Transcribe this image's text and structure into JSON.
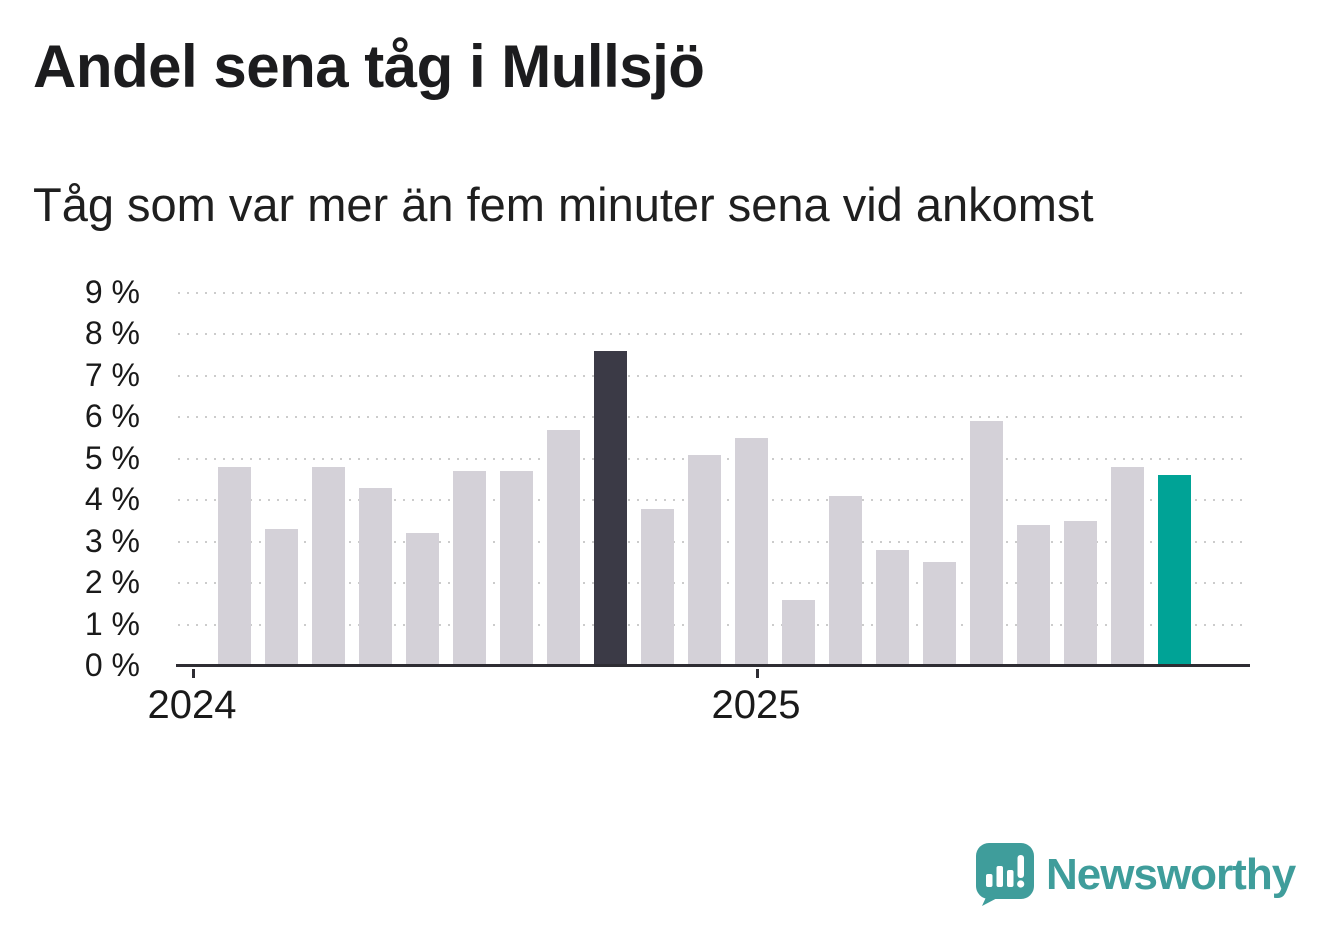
{
  "header": {
    "title": "Andel sena tåg i Mullsjö",
    "subtitle": "Tåg som var mer än fem minuter sena vid ankomst"
  },
  "chart_data": {
    "type": "bar",
    "title": "Andel sena tåg i Mullsjö",
    "subtitle": "Tåg som var mer än fem minuter sena vid ankomst",
    "values": [
      4.8,
      3.3,
      4.8,
      4.3,
      3.2,
      4.7,
      4.7,
      5.7,
      7.6,
      3.8,
      5.1,
      5.5,
      1.6,
      4.1,
      2.8,
      2.5,
      5.9,
      3.4,
      3.5,
      4.8,
      4.6
    ],
    "unit": "%",
    "ylim": [
      0,
      9
    ],
    "ytick_labels": [
      "0 %",
      "1 %",
      "2 %",
      "3 %",
      "4 %",
      "5 %",
      "6 %",
      "7 %",
      "8 %",
      "9 %"
    ],
    "x_ticks": [
      {
        "bar_index": 0,
        "label": "2024"
      },
      {
        "bar_index": 12,
        "label": "2025"
      }
    ],
    "grid": "dotted-horizontal",
    "legend": "none",
    "colors": {
      "bar_default": "#d4d1d8",
      "bar_dark_highlight": "#3b3a46",
      "bar_latest_highlight": "#00a396",
      "axis": "#2e2d33",
      "gridline": "#cccccc",
      "text": "#1a1a1a"
    },
    "bar_color_overrides": {
      "8": "bar_dark_highlight",
      "20": "bar_latest_highlight"
    }
  },
  "footer": {
    "brand": "Newsworthy",
    "brand_color": "#3f9d9b",
    "logo_icon": "bar-chart-speech-bubble-icon"
  }
}
